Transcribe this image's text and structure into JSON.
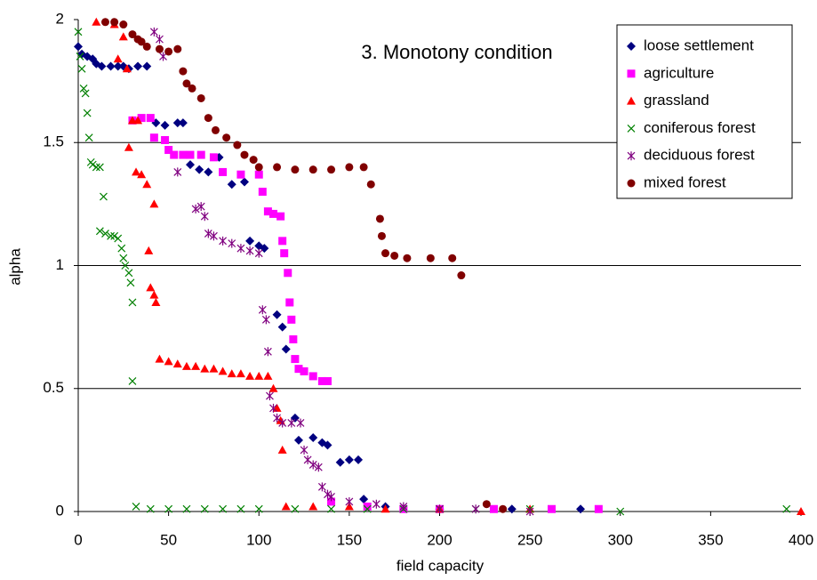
{
  "chart_data": {
    "type": "scatter",
    "title": "3. Monotony condition",
    "x_label": "field capacity",
    "y_label": "alpha",
    "xlim": [
      0,
      400
    ],
    "xticks": [
      0,
      50,
      100,
      150,
      200,
      250,
      300,
      350,
      400
    ],
    "ylim": [
      0,
      2
    ],
    "yticks": [
      0,
      0.5,
      1,
      1.5,
      2
    ],
    "grid": true,
    "legend": "top-right",
    "series": [
      {
        "name": "loose settlement",
        "color": "#000080",
        "marker": "diamond",
        "x": [
          0,
          2,
          5,
          8,
          10,
          13,
          18,
          22,
          25,
          28,
          33,
          38,
          43,
          48,
          55,
          58,
          62,
          67,
          72,
          78,
          85,
          92,
          95,
          100,
          103,
          110,
          113,
          115,
          120,
          122,
          130,
          135,
          138,
          145,
          150,
          155,
          158,
          170,
          200,
          240,
          278
        ],
        "values": [
          1.89,
          1.86,
          1.85,
          1.84,
          1.82,
          1.81,
          1.81,
          1.81,
          1.81,
          1.8,
          1.81,
          1.81,
          1.58,
          1.57,
          1.58,
          1.58,
          1.41,
          1.39,
          1.38,
          1.44,
          1.33,
          1.34,
          1.1,
          1.08,
          1.07,
          0.8,
          0.75,
          0.66,
          0.38,
          0.29,
          0.3,
          0.28,
          0.27,
          0.2,
          0.21,
          0.21,
          0.05,
          0.02,
          0.01,
          0.01,
          0.01
        ]
      },
      {
        "name": "agriculture",
        "color": "#ff00ff",
        "marker": "square",
        "x": [
          30,
          35,
          40,
          42,
          48,
          50,
          53,
          58,
          62,
          68,
          75,
          80,
          90,
          100,
          102,
          105,
          108,
          112,
          113,
          114,
          116,
          117,
          118,
          119,
          120,
          122,
          125,
          130,
          135,
          138,
          140,
          160,
          180,
          200,
          230,
          262,
          288
        ],
        "values": [
          1.59,
          1.6,
          1.6,
          1.52,
          1.51,
          1.47,
          1.45,
          1.45,
          1.45,
          1.45,
          1.44,
          1.38,
          1.37,
          1.37,
          1.3,
          1.22,
          1.21,
          1.2,
          1.1,
          1.05,
          0.97,
          0.85,
          0.78,
          0.7,
          0.62,
          0.58,
          0.57,
          0.55,
          0.53,
          0.53,
          0.04,
          0.02,
          0.01,
          0.01,
          0.01,
          0.01,
          0.01
        ]
      },
      {
        "name": "grassland",
        "color": "#ff0000",
        "marker": "triangle",
        "x": [
          10,
          20,
          25,
          22,
          27,
          30,
          33,
          28,
          32,
          35,
          38,
          42,
          39,
          40,
          42,
          43,
          45,
          50,
          55,
          60,
          65,
          70,
          75,
          80,
          85,
          90,
          95,
          100,
          105,
          108,
          110,
          112,
          113,
          115,
          130,
          150,
          170,
          200,
          250,
          400
        ],
        "values": [
          1.99,
          1.98,
          1.93,
          1.84,
          1.8,
          1.59,
          1.59,
          1.48,
          1.38,
          1.37,
          1.33,
          1.25,
          1.06,
          0.91,
          0.88,
          0.85,
          0.62,
          0.61,
          0.6,
          0.59,
          0.59,
          0.58,
          0.58,
          0.57,
          0.56,
          0.56,
          0.55,
          0.55,
          0.55,
          0.5,
          0.42,
          0.37,
          0.25,
          0.02,
          0.02,
          0.02,
          0.01,
          0.01,
          0.01,
          0
        ]
      },
      {
        "name": "coniferous forest",
        "color": "#008000",
        "marker": "x",
        "x": [
          0,
          1,
          2,
          3,
          4,
          5,
          6,
          7,
          8,
          10,
          12,
          14,
          12,
          15,
          18,
          20,
          22,
          24,
          25,
          26,
          28,
          29,
          30,
          30,
          32,
          40,
          50,
          60,
          70,
          80,
          90,
          100,
          120,
          140,
          160,
          180,
          200,
          220,
          250,
          300,
          392
        ],
        "values": [
          1.95,
          1.85,
          1.8,
          1.72,
          1.7,
          1.62,
          1.52,
          1.42,
          1.41,
          1.4,
          1.4,
          1.28,
          1.14,
          1.13,
          1.12,
          1.12,
          1.11,
          1.07,
          1.03,
          1,
          0.97,
          0.93,
          0.85,
          0.53,
          0.02,
          0.01,
          0.01,
          0.01,
          0.01,
          0.01,
          0.01,
          0.01,
          0.01,
          0.01,
          0.01,
          0.01,
          0.01,
          0.01,
          0.01,
          0,
          0.01
        ]
      },
      {
        "name": "deciduous forest",
        "color": "#800080",
        "marker": "asterisk",
        "x": [
          42,
          45,
          47,
          55,
          65,
          68,
          70,
          72,
          75,
          80,
          85,
          90,
          95,
          100,
          102,
          104,
          105,
          106,
          108,
          110,
          113,
          118,
          123,
          125,
          127,
          130,
          133,
          135,
          138,
          140,
          150,
          165,
          180,
          200,
          220,
          250
        ],
        "values": [
          1.95,
          1.92,
          1.85,
          1.38,
          1.23,
          1.24,
          1.2,
          1.13,
          1.12,
          1.1,
          1.09,
          1.07,
          1.06,
          1.05,
          0.82,
          0.78,
          0.65,
          0.47,
          0.42,
          0.38,
          0.36,
          0.36,
          0.36,
          0.25,
          0.21,
          0.19,
          0.18,
          0.1,
          0.07,
          0.06,
          0.04,
          0.03,
          0.02,
          0.01,
          0.01,
          0
        ]
      },
      {
        "name": "mixed forest",
        "color": "#800000",
        "marker": "circle",
        "x": [
          15,
          20,
          25,
          30,
          33,
          35,
          38,
          45,
          50,
          55,
          58,
          60,
          63,
          68,
          72,
          76,
          82,
          88,
          92,
          97,
          100,
          110,
          120,
          130,
          140,
          150,
          158,
          162,
          167,
          168,
          170,
          175,
          182,
          195,
          207,
          212,
          226,
          235
        ],
        "values": [
          1.99,
          1.99,
          1.98,
          1.94,
          1.92,
          1.91,
          1.89,
          1.88,
          1.87,
          1.88,
          1.79,
          1.74,
          1.72,
          1.68,
          1.6,
          1.55,
          1.52,
          1.49,
          1.45,
          1.43,
          1.4,
          1.4,
          1.39,
          1.39,
          1.39,
          1.4,
          1.4,
          1.33,
          1.19,
          1.12,
          1.05,
          1.04,
          1.03,
          1.03,
          1.03,
          0.96,
          0.03,
          0.01
        ]
      }
    ]
  }
}
